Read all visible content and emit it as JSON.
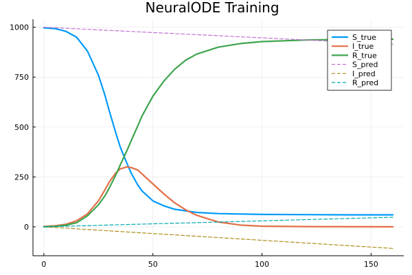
{
  "chart_data": {
    "type": "line",
    "title": "NeuralODE Training",
    "xlabel": "",
    "ylabel": "",
    "xlim": [
      -5,
      165
    ],
    "ylim": [
      -145,
      1040
    ],
    "xticks": [
      0,
      50,
      100,
      150
    ],
    "yticks": [
      0,
      250,
      500,
      750,
      1000
    ],
    "grid": true,
    "legend": "top-right",
    "series": [
      {
        "name": "S_true",
        "color": "#009af9",
        "dash": "solid",
        "width": 2.2,
        "x": [
          0,
          5,
          10,
          15,
          20,
          25,
          28,
          30,
          33,
          35,
          38,
          40,
          43,
          45,
          50,
          55,
          60,
          70,
          80,
          100,
          120,
          140,
          160
        ],
        "y": [
          997,
          993,
          980,
          950,
          880,
          760,
          660,
          580,
          470,
          400,
          320,
          270,
          210,
          180,
          130,
          105,
          88,
          72,
          66,
          62,
          61,
          60,
          60
        ]
      },
      {
        "name": "I_true",
        "color": "#e26f46",
        "dash": "solid",
        "width": 2.2,
        "x": [
          0,
          5,
          10,
          15,
          20,
          25,
          28,
          30,
          33,
          35,
          38,
          40,
          43,
          45,
          50,
          55,
          60,
          65,
          70,
          80,
          90,
          100,
          120,
          160
        ],
        "y": [
          2,
          5,
          12,
          30,
          65,
          130,
          185,
          225,
          270,
          290,
          300,
          297,
          285,
          265,
          215,
          165,
          120,
          85,
          58,
          24,
          9,
          3,
          1,
          0
        ]
      },
      {
        "name": "R_true",
        "color": "#3da44d",
        "dash": "solid",
        "width": 2.2,
        "x": [
          0,
          5,
          10,
          15,
          20,
          25,
          28,
          30,
          33,
          35,
          38,
          40,
          43,
          45,
          50,
          55,
          60,
          65,
          70,
          80,
          90,
          100,
          120,
          140,
          160
        ],
        "y": [
          0,
          2,
          8,
          20,
          55,
          110,
          155,
          195,
          260,
          310,
          380,
          430,
          505,
          555,
          655,
          730,
          790,
          835,
          865,
          900,
          918,
          928,
          936,
          939,
          940
        ]
      },
      {
        "name": "S_pred",
        "color": "#c271d2",
        "dash": "dashed",
        "width": 1.2,
        "x": [
          0,
          160
        ],
        "y": [
          1000,
          915
        ]
      },
      {
        "name": "I_pred",
        "color": "#ac8d18",
        "dash": "dashed",
        "width": 1.2,
        "x": [
          0,
          160
        ],
        "y": [
          0,
          -108
        ]
      },
      {
        "name": "R_pred",
        "color": "#00a9ad",
        "dash": "dashed",
        "width": 1.2,
        "x": [
          0,
          160
        ],
        "y": [
          0,
          48
        ]
      }
    ]
  }
}
